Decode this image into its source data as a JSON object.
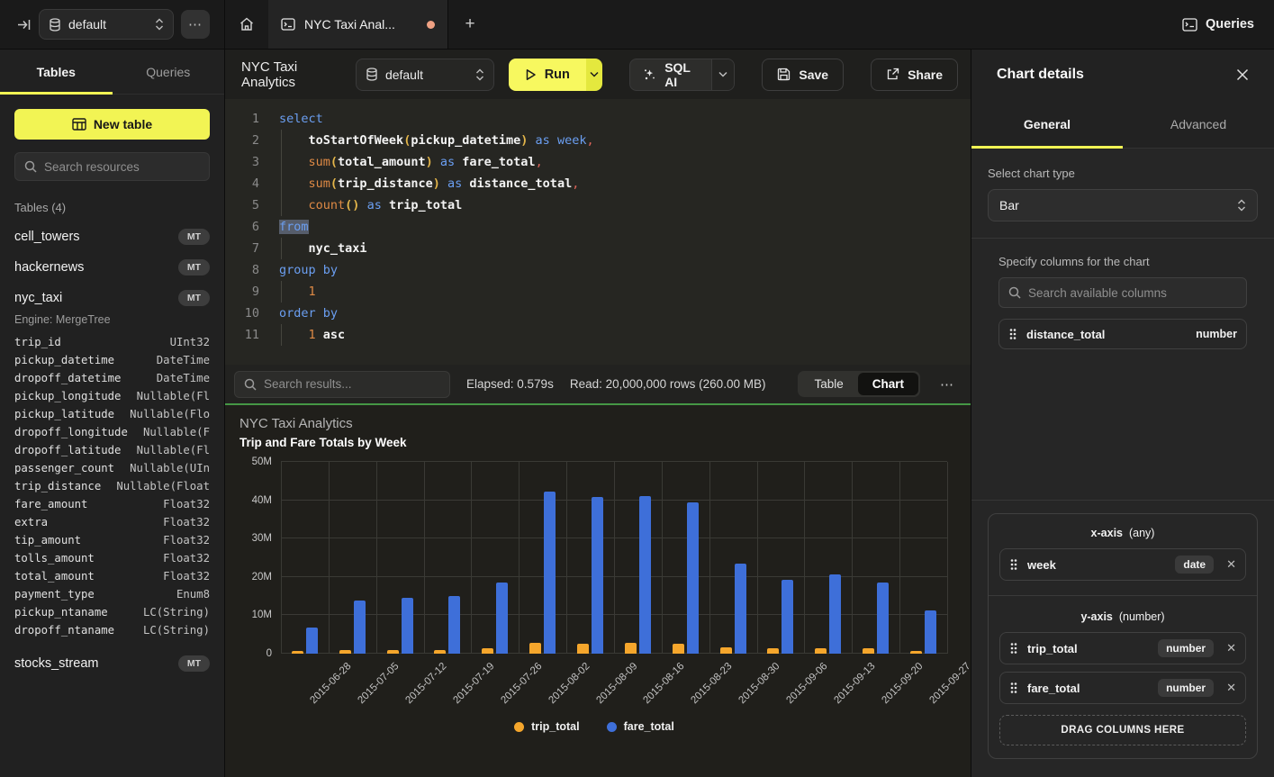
{
  "topbar": {
    "database_selector": {
      "value": "default"
    },
    "overflow_button": "⋯",
    "tab": {
      "title": "NYC Taxi Anal..."
    },
    "queries_button": "Queries"
  },
  "sidebar": {
    "tabs": {
      "tables": "Tables",
      "queries": "Queries"
    },
    "new_table_button": "New table",
    "search_placeholder": "Search resources",
    "section_header": "Tables (4)",
    "tables": [
      {
        "name": "cell_towers",
        "badge": "MT"
      },
      {
        "name": "hackernews",
        "badge": "MT"
      },
      {
        "name": "nyc_taxi",
        "badge": "MT",
        "engine": "Engine: MergeTree"
      },
      {
        "name": "stocks_stream",
        "badge": "MT"
      }
    ],
    "nyc_taxi_columns": [
      {
        "name": "trip_id",
        "type": "UInt32"
      },
      {
        "name": "pickup_datetime",
        "type": "DateTime"
      },
      {
        "name": "dropoff_datetime",
        "type": "DateTime"
      },
      {
        "name": "pickup_longitude",
        "type": "Nullable(Fl"
      },
      {
        "name": "pickup_latitude",
        "type": "Nullable(Flo"
      },
      {
        "name": "dropoff_longitude",
        "type": "Nullable(F"
      },
      {
        "name": "dropoff_latitude",
        "type": "Nullable(Fl"
      },
      {
        "name": "passenger_count",
        "type": "Nullable(UIn"
      },
      {
        "name": "trip_distance",
        "type": "Nullable(Float"
      },
      {
        "name": "fare_amount",
        "type": "Float32"
      },
      {
        "name": "extra",
        "type": "Float32"
      },
      {
        "name": "tip_amount",
        "type": "Float32"
      },
      {
        "name": "tolls_amount",
        "type": "Float32"
      },
      {
        "name": "total_amount",
        "type": "Float32"
      },
      {
        "name": "payment_type",
        "type": "Enum8"
      },
      {
        "name": "pickup_ntaname",
        "type": "LC(String)"
      },
      {
        "name": "dropoff_ntaname",
        "type": "LC(String)"
      }
    ]
  },
  "query": {
    "title": "NYC Taxi Analytics"
  },
  "toolbar": {
    "database_selector": {
      "value": "default"
    },
    "run_label": "Run",
    "sql_ai_label": "SQL AI",
    "save_label": "Save",
    "share_label": "Share"
  },
  "editor": {
    "lines": [
      {
        "n": "1",
        "ind": 0,
        "seg": [
          [
            "kw",
            "select"
          ]
        ]
      },
      {
        "n": "2",
        "ind": 1,
        "seg": [
          [
            "pl",
            "    "
          ],
          [
            "id",
            "toStartOfWeek"
          ],
          [
            "pr",
            "("
          ],
          [
            "id",
            "pickup_datetime"
          ],
          [
            "pr",
            ")"
          ],
          [
            "pl",
            " "
          ],
          [
            "kw",
            "as"
          ],
          [
            "pl",
            " "
          ],
          [
            "kw",
            "week"
          ],
          [
            "pu",
            ","
          ]
        ]
      },
      {
        "n": "3",
        "ind": 1,
        "seg": [
          [
            "pl",
            "    "
          ],
          [
            "fn",
            "sum"
          ],
          [
            "pr",
            "("
          ],
          [
            "id",
            "total_amount"
          ],
          [
            "pr",
            ")"
          ],
          [
            "pl",
            " "
          ],
          [
            "kw",
            "as"
          ],
          [
            "pl",
            " "
          ],
          [
            "id",
            "fare_total"
          ],
          [
            "pu",
            ","
          ]
        ]
      },
      {
        "n": "4",
        "ind": 1,
        "seg": [
          [
            "pl",
            "    "
          ],
          [
            "fn",
            "sum"
          ],
          [
            "pr",
            "("
          ],
          [
            "id",
            "trip_distance"
          ],
          [
            "pr",
            ")"
          ],
          [
            "pl",
            " "
          ],
          [
            "kw",
            "as"
          ],
          [
            "pl",
            " "
          ],
          [
            "id",
            "distance_total"
          ],
          [
            "pu",
            ","
          ]
        ]
      },
      {
        "n": "5",
        "ind": 1,
        "seg": [
          [
            "pl",
            "    "
          ],
          [
            "fn",
            "count"
          ],
          [
            "pr",
            "()"
          ],
          [
            "pl",
            " "
          ],
          [
            "kw",
            "as"
          ],
          [
            "pl",
            " "
          ],
          [
            "id",
            "trip_total"
          ]
        ]
      },
      {
        "n": "6",
        "ind": 0,
        "seg": [
          [
            "kw selhl",
            "from"
          ]
        ]
      },
      {
        "n": "7",
        "ind": 1,
        "seg": [
          [
            "pl",
            "    "
          ],
          [
            "id",
            "nyc_taxi"
          ]
        ]
      },
      {
        "n": "8",
        "ind": 0,
        "seg": [
          [
            "kw",
            "group by"
          ]
        ]
      },
      {
        "n": "9",
        "ind": 1,
        "seg": [
          [
            "pl",
            "    "
          ],
          [
            "num",
            "1"
          ]
        ]
      },
      {
        "n": "10",
        "ind": 0,
        "seg": [
          [
            "kw",
            "order by"
          ]
        ]
      },
      {
        "n": "11",
        "ind": 1,
        "seg": [
          [
            "pl",
            "    "
          ],
          [
            "num",
            "1"
          ],
          [
            "pl",
            " "
          ],
          [
            "id",
            "asc"
          ]
        ]
      }
    ]
  },
  "results_bar": {
    "search_placeholder": "Search results...",
    "elapsed": "Elapsed: 0.579s",
    "read": "Read: 20,000,000 rows (260.00 MB)",
    "view_toggle": {
      "table": "Table",
      "chart": "Chart"
    },
    "active_view": "Chart",
    "overflow": "⋯"
  },
  "chart_data": {
    "type": "bar",
    "title": "NYC Taxi Analytics",
    "subtitle": "Trip and Fare Totals by Week",
    "categories": [
      "2015-06-28",
      "2015-07-05",
      "2015-07-12",
      "2015-07-19",
      "2015-07-26",
      "2015-08-02",
      "2015-08-09",
      "2015-08-16",
      "2015-08-23",
      "2015-08-30",
      "2015-09-06",
      "2015-09-13",
      "2015-09-20",
      "2015-09-27"
    ],
    "series": [
      {
        "name": "trip_total",
        "color": "#f5a62c",
        "values_millions": [
          0.6,
          1.0,
          1.0,
          1.0,
          1.3,
          2.9,
          2.6,
          2.9,
          2.5,
          1.7,
          1.5,
          1.5,
          1.5,
          0.8
        ]
      },
      {
        "name": "fare_total",
        "color": "#3e6fd9",
        "values_millions": [
          6.8,
          13.8,
          14.5,
          15.0,
          18.5,
          42.2,
          40.8,
          41.2,
          39.4,
          23.4,
          19.3,
          20.7,
          18.6,
          11.3
        ]
      }
    ],
    "ylabel": "",
    "xlabel": "",
    "ylim_millions": [
      0,
      50
    ],
    "yticks": [
      {
        "label": "0",
        "value": 0
      },
      {
        "label": "10M",
        "value": 10
      },
      {
        "label": "20M",
        "value": 20
      },
      {
        "label": "30M",
        "value": 30
      },
      {
        "label": "40M",
        "value": 40
      },
      {
        "label": "50M",
        "value": 50
      }
    ],
    "grid": true,
    "legend_position": "bottom"
  },
  "chart_panel": {
    "title": "Chart details",
    "tabs": {
      "general": "General",
      "advanced": "Advanced"
    },
    "active_tab": "General",
    "chart_type_label": "Select chart type",
    "chart_type_value": "Bar",
    "columns_label": "Specify columns for the chart",
    "columns_search_placeholder": "Search available columns",
    "available_columns": [
      {
        "name": "distance_total",
        "type": "number"
      }
    ],
    "x_axis": {
      "label": "x-axis",
      "constraint": "(any)",
      "fields": [
        {
          "name": "week",
          "type": "date"
        }
      ]
    },
    "y_axis": {
      "label": "y-axis",
      "constraint": "(number)",
      "fields": [
        {
          "name": "trip_total",
          "type": "number"
        },
        {
          "name": "fare_total",
          "type": "number"
        }
      ]
    },
    "drop_zone": "DRAG COLUMNS HERE"
  }
}
